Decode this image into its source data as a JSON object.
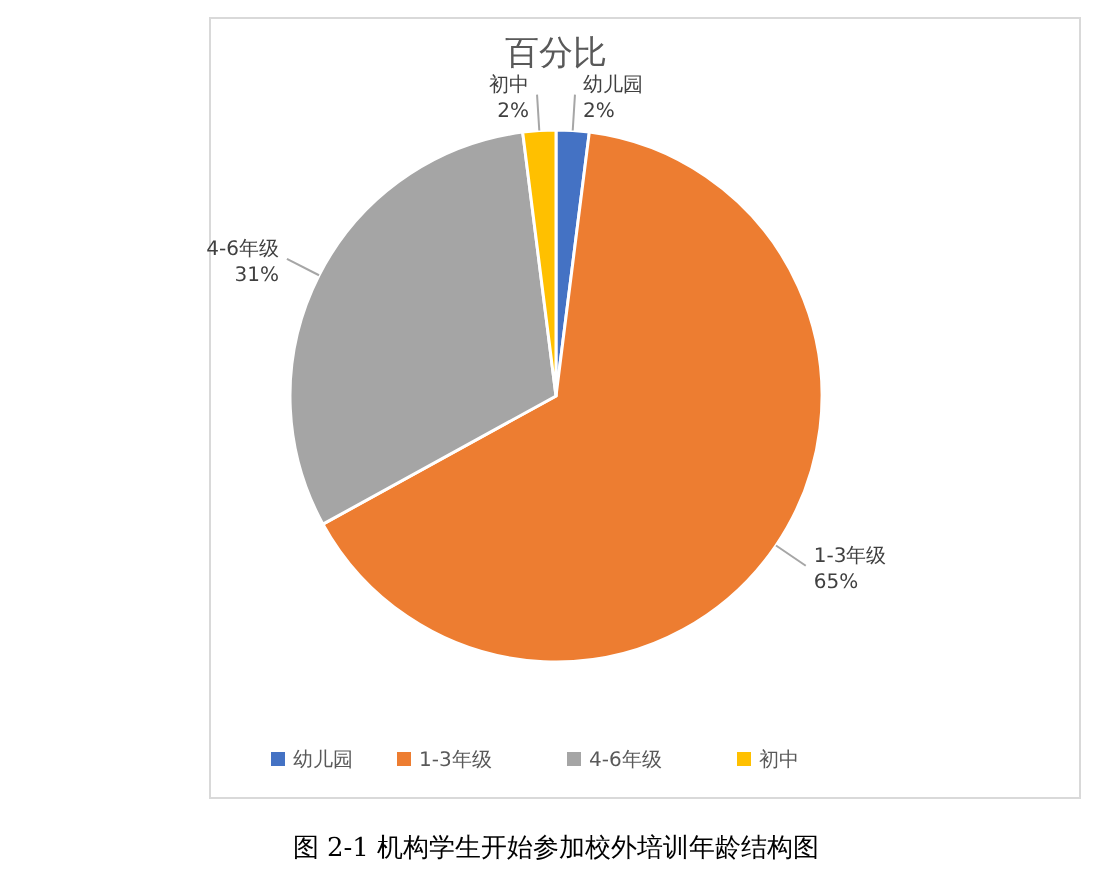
{
  "chart_data": {
    "type": "pie",
    "title": "百分比",
    "categories": [
      "幼儿园",
      "1-3年级",
      "4-6年级",
      "初中"
    ],
    "values": [
      2,
      65,
      31,
      2
    ],
    "value_labels": [
      "2%",
      "65%",
      "31%",
      "2%"
    ],
    "colors": [
      "#4472c4",
      "#ed7d31",
      "#a5a5a5",
      "#ffc000"
    ],
    "legend": "bottom",
    "annotations": [
      "图 2-1  机构学生开始参加校外培训年龄结构图"
    ]
  }
}
